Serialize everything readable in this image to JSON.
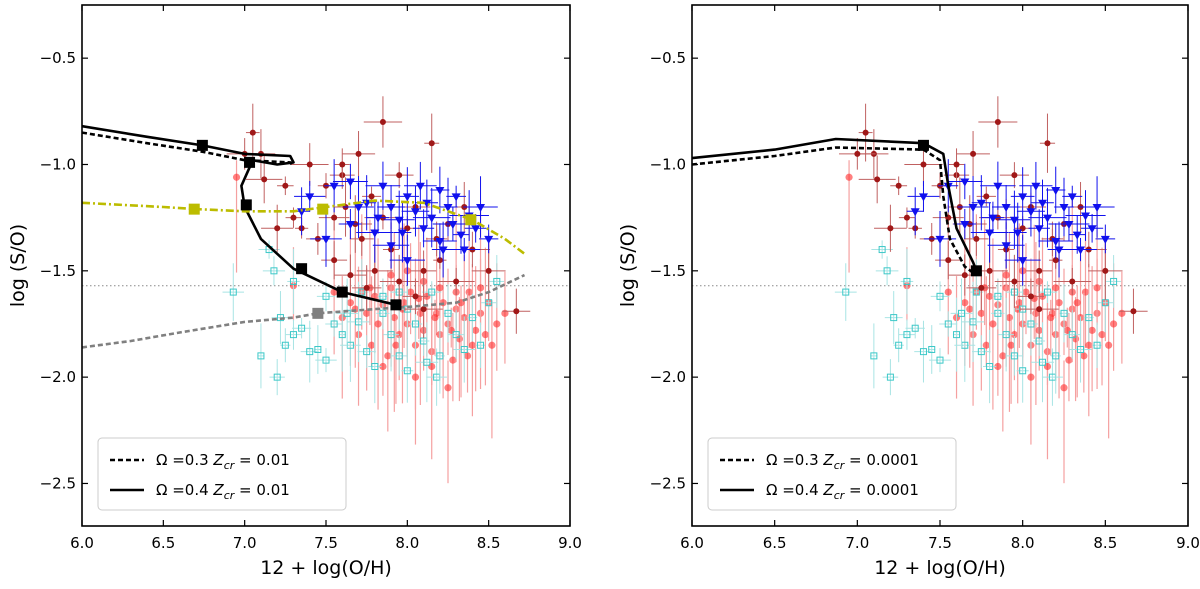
{
  "colors": {
    "model": "#000000",
    "yellow_model": "#bcbc00",
    "grey_model": "#808080",
    "red_points": "#ff2a2a",
    "darkred_points": "#a01818",
    "blue_points": "#1010ee",
    "cyan_points": "#3cc8c8",
    "dotted_ref": "#888888"
  },
  "chart_data": [
    {
      "type": "line",
      "xlabel": "12 + log(O/H)",
      "ylabel": "log (S/O)",
      "xlim": [
        6.0,
        9.0
      ],
      "ylim": [
        -2.7,
        -0.25
      ],
      "xticks": [
        "6.0",
        "6.5",
        "7.0",
        "7.5",
        "8.0",
        "8.5",
        "9.0"
      ],
      "yticks": [
        "−0.5",
        "−1.0",
        "−1.5",
        "−2.0",
        "−2.5"
      ],
      "reference_y": -1.57,
      "legend_position": "lower-left",
      "legend": [
        {
          "label_prefix": "Ω =0.3 ",
          "label_var": "Z",
          "label_sub": "cr",
          "label_suffix": " = 0.01",
          "style": "dashed"
        },
        {
          "label_prefix": "Ω =0.4 ",
          "label_var": "Z",
          "label_sub": "cr",
          "label_suffix": " = 0.01",
          "style": "solid"
        }
      ],
      "series": [
        {
          "name": "Ω=0.4 Zcr=0.01",
          "style": "solid",
          "color": "#000000",
          "x": [
            6.0,
            6.4,
            6.74,
            7.0,
            7.28,
            7.3,
            7.2,
            7.05,
            6.98,
            7.0,
            7.1,
            7.3,
            7.6,
            7.93
          ],
          "y": [
            -0.82,
            -0.87,
            -0.91,
            -0.95,
            -0.96,
            -0.99,
            -1.0,
            -0.98,
            -1.1,
            -1.2,
            -1.35,
            -1.49,
            -1.6,
            -1.66
          ]
        },
        {
          "name": "Ω=0.3 Zcr=0.01",
          "style": "dashed",
          "color": "#000000",
          "x": [
            6.0,
            6.4,
            6.74,
            7.0,
            7.28,
            7.3
          ],
          "y": [
            -0.85,
            -0.9,
            -0.94,
            -0.98,
            -0.99,
            -1.01
          ]
        },
        {
          "name": "yellow model",
          "style": "dashdot",
          "color": "#bcbc00",
          "x": [
            6.0,
            6.5,
            6.7,
            7.0,
            7.3,
            7.5,
            7.8,
            8.1,
            8.4,
            8.6,
            8.72
          ],
          "y": [
            -1.18,
            -1.2,
            -1.21,
            -1.22,
            -1.22,
            -1.2,
            -1.17,
            -1.18,
            -1.26,
            -1.35,
            -1.42
          ]
        },
        {
          "name": "grey model",
          "style": "dashed",
          "color": "#808080",
          "x": [
            6.0,
            6.3,
            6.6,
            7.0,
            7.3,
            7.45,
            7.8,
            8.0,
            8.3,
            8.5,
            8.72
          ],
          "y": [
            -1.86,
            -1.83,
            -1.79,
            -1.74,
            -1.72,
            -1.7,
            -1.68,
            -1.67,
            -1.65,
            -1.6,
            -1.52
          ]
        }
      ],
      "markers": [
        {
          "x": 6.74,
          "y": -0.91,
          "color": "#000000"
        },
        {
          "x": 7.03,
          "y": -0.99,
          "color": "#000000"
        },
        {
          "x": 7.01,
          "y": -1.19,
          "color": "#000000"
        },
        {
          "x": 7.35,
          "y": -1.49,
          "color": "#000000"
        },
        {
          "x": 7.6,
          "y": -1.6,
          "color": "#000000"
        },
        {
          "x": 7.93,
          "y": -1.66,
          "color": "#000000"
        },
        {
          "x": 6.69,
          "y": -1.21,
          "color": "#bcbc00"
        },
        {
          "x": 7.48,
          "y": -1.21,
          "color": "#bcbc00"
        },
        {
          "x": 8.39,
          "y": -1.26,
          "color": "#bcbc00"
        },
        {
          "x": 7.45,
          "y": -1.7,
          "color": "#808080"
        }
      ]
    },
    {
      "type": "line",
      "xlabel": "12 + log(O/H)",
      "ylabel": "log (S/O)",
      "xlim": [
        6.0,
        9.0
      ],
      "ylim": [
        -2.7,
        -0.25
      ],
      "xticks": [
        "6.0",
        "6.5",
        "7.0",
        "7.5",
        "8.0",
        "8.5",
        "9.0"
      ],
      "yticks": [
        "−0.5",
        "−1.0",
        "−1.5",
        "−2.0",
        "−2.5"
      ],
      "reference_y": -1.57,
      "legend_position": "lower-left",
      "legend": [
        {
          "label_prefix": "Ω =0.3 ",
          "label_var": "Z",
          "label_sub": "cr",
          "label_suffix": " = 0.0001",
          "style": "dashed"
        },
        {
          "label_prefix": "Ω =0.4 ",
          "label_var": "Z",
          "label_sub": "cr",
          "label_suffix": " = 0.0001",
          "style": "solid"
        }
      ],
      "series": [
        {
          "name": "Ω=0.4 Zcr=0.0001",
          "style": "solid",
          "color": "#000000",
          "x": [
            6.0,
            6.5,
            6.87,
            7.4,
            7.52,
            7.55,
            7.6,
            7.7,
            7.72
          ],
          "y": [
            -0.97,
            -0.93,
            -0.88,
            -0.9,
            -0.95,
            -1.1,
            -1.3,
            -1.46,
            -1.5
          ]
        },
        {
          "name": "Ω=0.3 Zcr=0.0001",
          "style": "dashed",
          "color": "#000000",
          "x": [
            6.0,
            6.5,
            6.87,
            7.4,
            7.5,
            7.52,
            7.56,
            7.65,
            7.72
          ],
          "y": [
            -1.0,
            -0.96,
            -0.92,
            -0.93,
            -0.98,
            -1.15,
            -1.35,
            -1.48,
            -1.52
          ]
        }
      ],
      "markers": [
        {
          "x": 7.4,
          "y": -0.91,
          "color": "#000000"
        },
        {
          "x": 7.72,
          "y": -1.5,
          "color": "#000000"
        }
      ]
    }
  ],
  "observations": {
    "darkred": [
      [
        7.05,
        -0.85
      ],
      [
        7.1,
        -0.95
      ],
      [
        7.12,
        -1.07
      ],
      [
        7.25,
        -1.1
      ],
      [
        7.3,
        -1.25
      ],
      [
        7.35,
        -1.3
      ],
      [
        7.4,
        -1.0
      ],
      [
        7.5,
        -1.1
      ],
      [
        7.55,
        -1.25
      ],
      [
        7.6,
        -1.05
      ],
      [
        7.62,
        -1.2
      ],
      [
        7.7,
        -0.95
      ],
      [
        7.72,
        -1.35
      ],
      [
        7.78,
        -1.15
      ],
      [
        7.85,
        -0.8
      ],
      [
        7.85,
        -1.25
      ],
      [
        7.9,
        -1.4
      ],
      [
        7.95,
        -1.05
      ],
      [
        8.0,
        -1.3
      ],
      [
        8.05,
        -1.2
      ],
      [
        8.1,
        -1.5
      ],
      [
        8.15,
        -0.9
      ],
      [
        8.18,
        -1.35
      ],
      [
        8.2,
        -1.45
      ],
      [
        8.25,
        -1.28
      ],
      [
        8.3,
        -1.55
      ],
      [
        8.35,
        -1.2
      ],
      [
        8.4,
        -1.4
      ],
      [
        8.5,
        -1.5
      ],
      [
        8.67,
        -1.69
      ],
      [
        7.45,
        -1.35
      ],
      [
        7.55,
        -1.45
      ],
      [
        7.65,
        -1.52
      ],
      [
        7.75,
        -1.58
      ],
      [
        7.8,
        -1.5
      ],
      [
        7.95,
        -1.55
      ],
      [
        8.05,
        -1.62
      ],
      [
        8.1,
        -1.68
      ],
      [
        7.6,
        -1.0
      ],
      [
        7.0,
        -0.95
      ],
      [
        7.2,
        -1.3
      ],
      [
        7.68,
        -1.28
      ]
    ],
    "blue": [
      [
        7.65,
        -1.28
      ],
      [
        7.75,
        -1.18
      ],
      [
        7.8,
        -1.32
      ],
      [
        7.85,
        -1.1
      ],
      [
        7.9,
        -1.2
      ],
      [
        7.95,
        -1.26
      ],
      [
        8.0,
        -1.15
      ],
      [
        8.05,
        -1.22
      ],
      [
        8.1,
        -1.3
      ],
      [
        8.12,
        -1.18
      ],
      [
        8.15,
        -1.25
      ],
      [
        8.2,
        -1.36
      ],
      [
        8.25,
        -1.2
      ],
      [
        8.28,
        -1.28
      ],
      [
        8.3,
        -1.15
      ],
      [
        8.33,
        -1.33
      ],
      [
        8.38,
        -1.24
      ],
      [
        8.42,
        -1.3
      ],
      [
        8.45,
        -1.2
      ],
      [
        8.5,
        -1.35
      ],
      [
        7.35,
        -1.22
      ],
      [
        7.5,
        -1.35
      ],
      [
        7.55,
        -1.1
      ],
      [
        7.65,
        -1.08
      ],
      [
        7.7,
        -1.2
      ],
      [
        7.9,
        -1.38
      ],
      [
        8.0,
        -1.45
      ],
      [
        8.2,
        -1.12
      ],
      [
        8.35,
        -1.4
      ],
      [
        7.4,
        -1.15
      ],
      [
        7.82,
        -1.25
      ],
      [
        8.08,
        -1.1
      ],
      [
        8.22,
        -1.4
      ],
      [
        7.97,
        -1.32
      ]
    ],
    "cyan": [
      [
        6.93,
        -1.6
      ],
      [
        7.15,
        -1.4
      ],
      [
        7.18,
        -1.5
      ],
      [
        7.22,
        -1.72
      ],
      [
        7.25,
        -1.85
      ],
      [
        7.3,
        -1.8
      ],
      [
        7.35,
        -1.77
      ],
      [
        7.4,
        -1.88
      ],
      [
        7.45,
        -1.87
      ],
      [
        7.5,
        -1.92
      ],
      [
        7.55,
        -1.75
      ],
      [
        7.6,
        -1.8
      ],
      [
        7.65,
        -1.85
      ],
      [
        7.7,
        -1.74
      ],
      [
        7.72,
        -1.6
      ],
      [
        7.75,
        -1.88
      ],
      [
        7.8,
        -1.95
      ],
      [
        7.85,
        -1.7
      ],
      [
        7.9,
        -1.8
      ],
      [
        7.95,
        -1.9
      ],
      [
        8.0,
        -1.97
      ],
      [
        8.05,
        -1.75
      ],
      [
        8.1,
        -1.83
      ],
      [
        8.12,
        -1.93
      ],
      [
        8.18,
        -2.0
      ],
      [
        8.2,
        -1.9
      ],
      [
        8.25,
        -1.7
      ],
      [
        8.3,
        -1.8
      ],
      [
        8.35,
        -1.87
      ],
      [
        8.4,
        -1.72
      ],
      [
        8.45,
        -1.85
      ],
      [
        8.5,
        -1.65
      ],
      [
        8.55,
        -1.55
      ],
      [
        7.3,
        -1.55
      ],
      [
        7.1,
        -1.9
      ],
      [
        7.2,
        -2.0
      ],
      [
        7.5,
        -1.62
      ],
      [
        7.85,
        -1.62
      ],
      [
        8.0,
        -1.68
      ],
      [
        8.15,
        -1.6
      ],
      [
        7.63,
        -1.7
      ],
      [
        7.95,
        -1.6
      ]
    ],
    "red": [
      [
        6.95,
        -1.06
      ],
      [
        7.3,
        -1.57
      ],
      [
        7.55,
        -1.6
      ],
      [
        7.6,
        -1.72
      ],
      [
        7.65,
        -1.65
      ],
      [
        7.7,
        -1.8
      ],
      [
        7.72,
        -1.6
      ],
      [
        7.75,
        -1.7
      ],
      [
        7.78,
        -1.85
      ],
      [
        7.8,
        -1.62
      ],
      [
        7.82,
        -1.75
      ],
      [
        7.85,
        -1.66
      ],
      [
        7.88,
        -1.9
      ],
      [
        7.9,
        -1.58
      ],
      [
        7.92,
        -1.72
      ],
      [
        7.95,
        -1.8
      ],
      [
        7.98,
        -1.65
      ],
      [
        8.0,
        -1.75
      ],
      [
        8.02,
        -1.6
      ],
      [
        8.05,
        -1.85
      ],
      [
        8.08,
        -1.7
      ],
      [
        8.1,
        -1.78
      ],
      [
        8.12,
        -1.62
      ],
      [
        8.15,
        -1.88
      ],
      [
        8.18,
        -1.7
      ],
      [
        8.2,
        -1.8
      ],
      [
        8.22,
        -1.65
      ],
      [
        8.25,
        -1.75
      ],
      [
        8.28,
        -1.92
      ],
      [
        8.3,
        -1.68
      ],
      [
        8.32,
        -1.82
      ],
      [
        8.35,
        -1.72
      ],
      [
        8.38,
        -1.6
      ],
      [
        8.4,
        -1.85
      ],
      [
        8.42,
        -1.78
      ],
      [
        8.45,
        -1.7
      ],
      [
        8.48,
        -1.8
      ],
      [
        8.5,
        -1.65
      ],
      [
        8.55,
        -1.75
      ],
      [
        8.6,
        -1.7
      ],
      [
        7.9,
        -1.52
      ],
      [
        8.0,
        -1.5
      ],
      [
        8.1,
        -1.55
      ],
      [
        8.2,
        -1.58
      ],
      [
        8.3,
        -1.6
      ],
      [
        7.85,
        -1.95
      ],
      [
        8.05,
        -2.0
      ],
      [
        8.25,
        -2.05
      ],
      [
        8.15,
        -1.95
      ],
      [
        7.97,
        -1.68
      ],
      [
        8.07,
        -1.63
      ],
      [
        8.17,
        -1.72
      ],
      [
        8.27,
        -1.78
      ],
      [
        8.37,
        -1.9
      ],
      [
        7.68,
        -1.68
      ],
      [
        7.77,
        -1.58
      ],
      [
        8.45,
        -1.58
      ],
      [
        8.52,
        -1.85
      ],
      [
        7.93,
        -1.85
      ],
      [
        8.33,
        -1.65
      ]
    ]
  }
}
